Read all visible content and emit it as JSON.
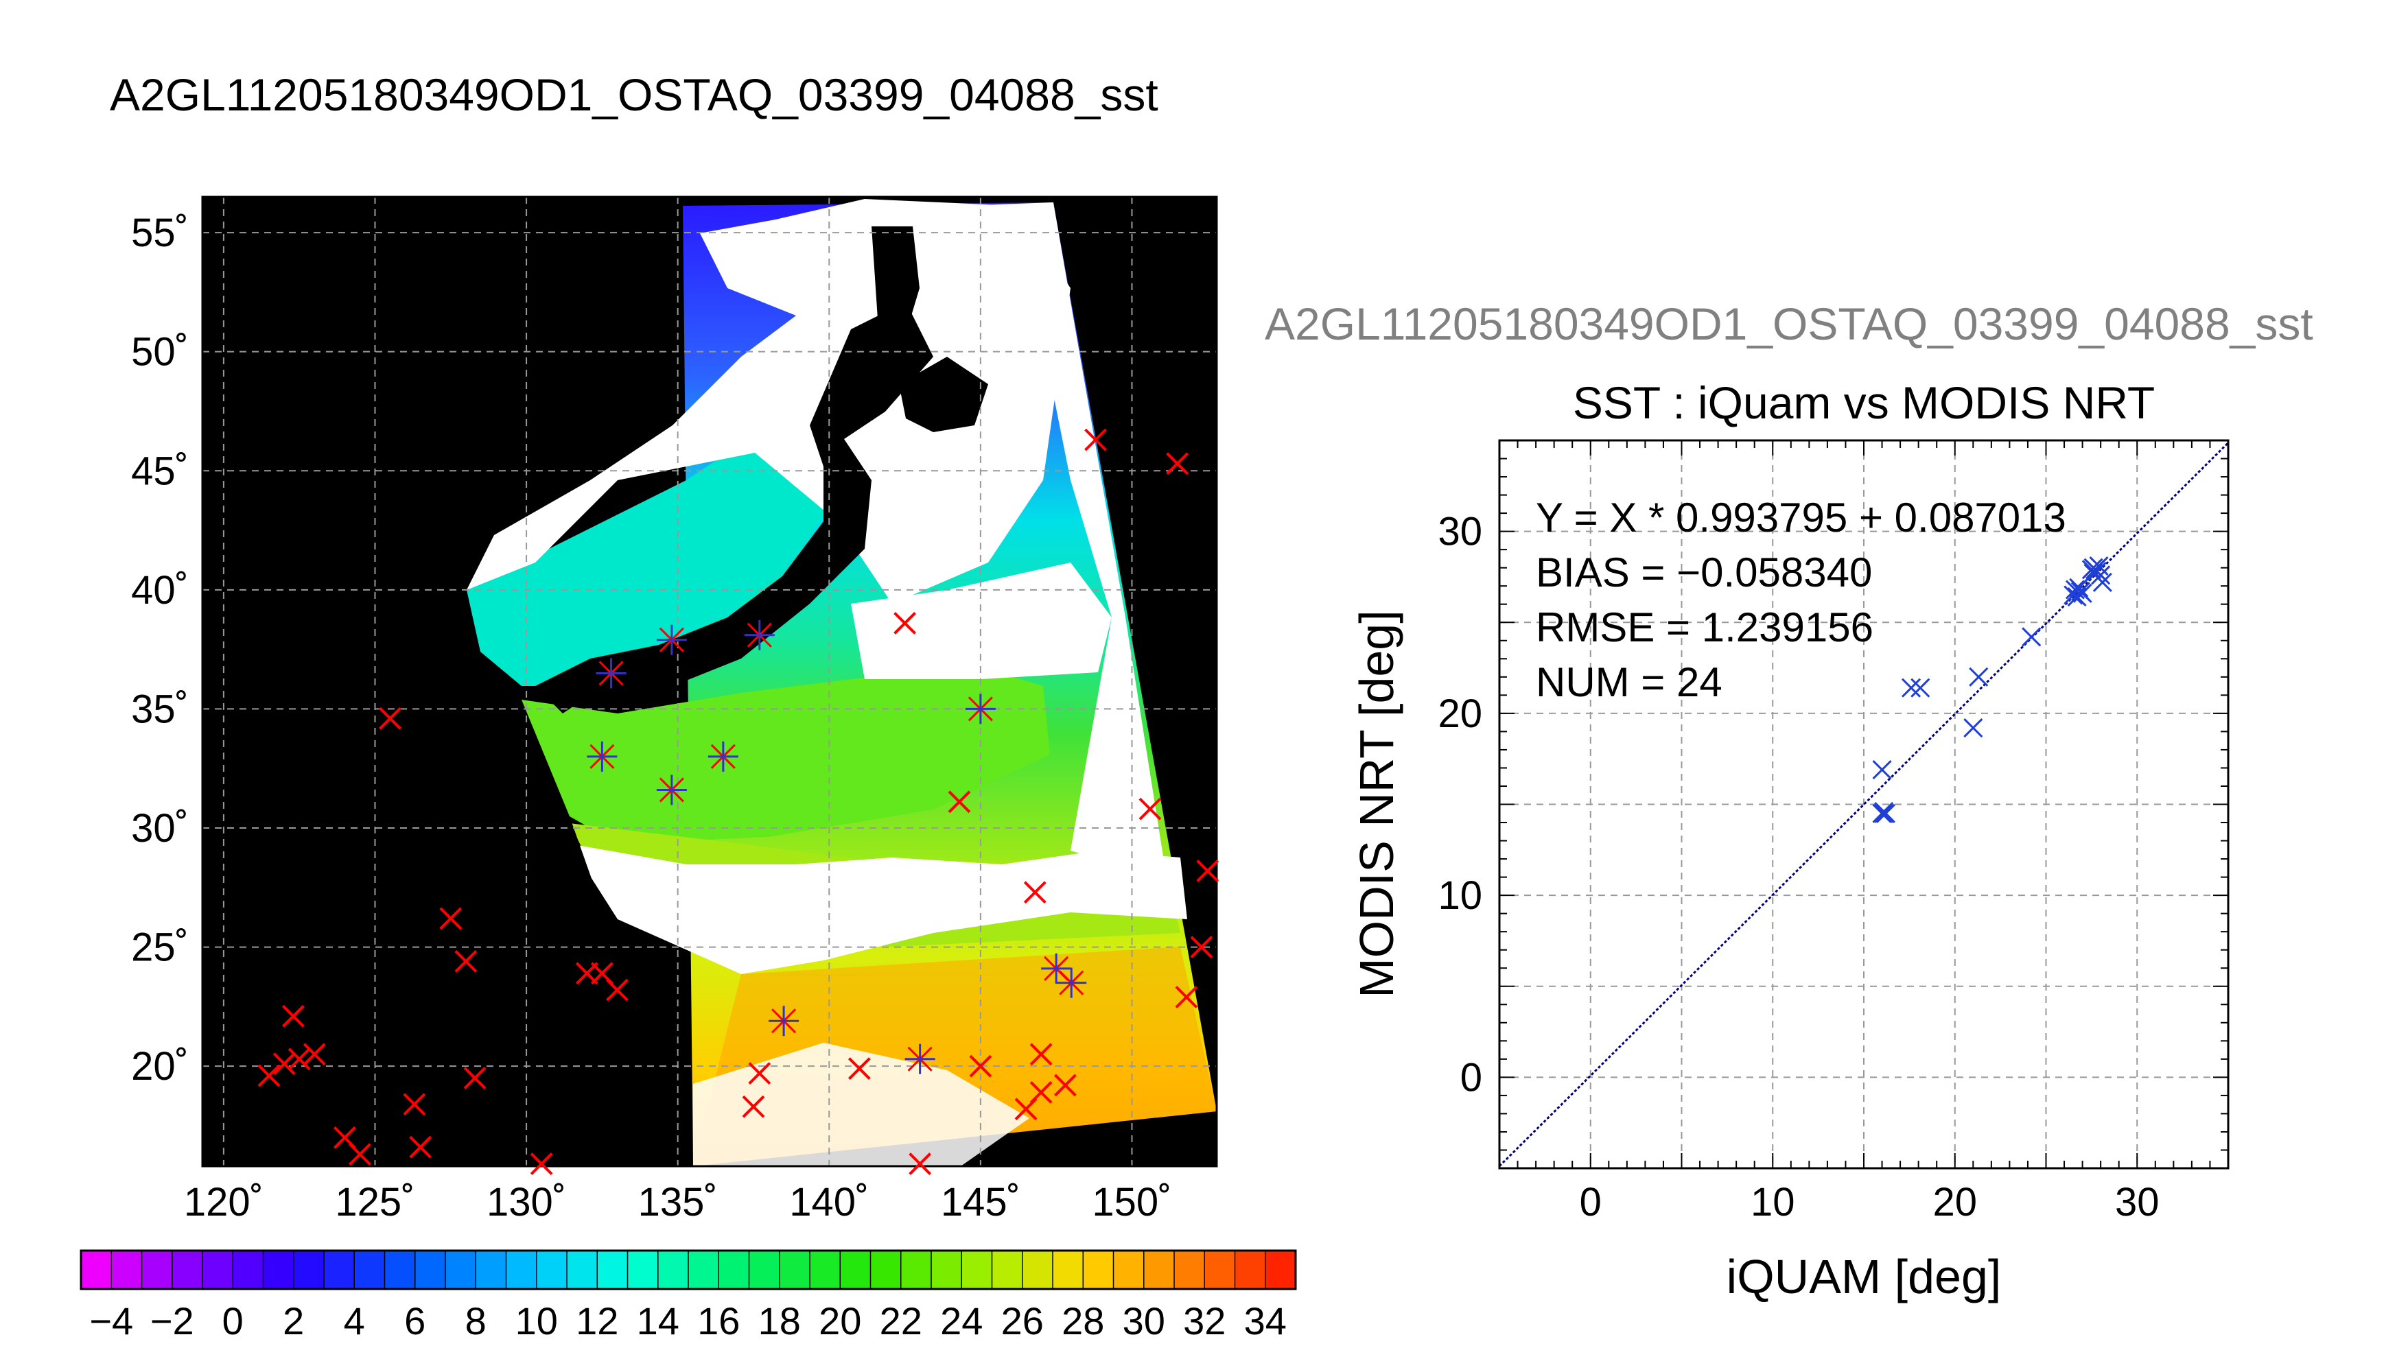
{
  "page": {
    "title": "A2GL11205180349OD1_OSTAQ_03399_04088_sst",
    "scatter_subtitle": "A2GL11205180349OD1_OSTAQ_03399_04088_sst"
  },
  "colors": {
    "match_marker": "#ff0000",
    "match_marker_in_swath": "#3333cc",
    "scatter_marker": "#1f3fd6",
    "fit_line": "#000080",
    "map_background": "#000000",
    "cloud_mask": "#ffffff",
    "subtitle_gray": "#808080"
  },
  "chart_data": [
    {
      "type": "heatmap",
      "name": "sst_map",
      "x_ticks": [
        "120˚",
        "125˚",
        "130˚",
        "135˚",
        "140˚",
        "145˚",
        "150˚"
      ],
      "y_ticks": [
        "55˚",
        "50˚",
        "45˚",
        "40˚",
        "35˚",
        "30˚",
        "25˚",
        "20˚"
      ],
      "xlim": [
        119.3,
        152.8
      ],
      "ylim": [
        15.8,
        56.5
      ],
      "grid": true,
      "colorbar": {
        "min": -5,
        "max": 35,
        "step": 2,
        "tick_labels": [
          "−4",
          "−2",
          "0",
          "2",
          "4",
          "6",
          "8",
          "10",
          "12",
          "14",
          "16",
          "18",
          "20",
          "22",
          "24",
          "26",
          "28",
          "30",
          "32",
          "34"
        ]
      },
      "matchups": [
        [
          148.8,
          46.3
        ],
        [
          151.5,
          45.3
        ],
        [
          142.5,
          38.6
        ],
        [
          125.5,
          34.6
        ],
        [
          144.3,
          31.1
        ],
        [
          150.6,
          30.8
        ],
        [
          152.5,
          28.2
        ],
        [
          146.8,
          27.3
        ],
        [
          152.3,
          25.0
        ],
        [
          151.8,
          22.9
        ],
        [
          127.5,
          26.2
        ],
        [
          128.0,
          24.4
        ],
        [
          132.0,
          23.9
        ],
        [
          132.5,
          23.9
        ],
        [
          133.0,
          23.2
        ],
        [
          122.3,
          22.1
        ],
        [
          121.5,
          19.6
        ],
        [
          122.0,
          20.1
        ],
        [
          122.5,
          20.3
        ],
        [
          123.0,
          20.5
        ],
        [
          128.3,
          19.5
        ],
        [
          126.3,
          18.4
        ],
        [
          124.0,
          17.0
        ],
        [
          124.5,
          16.3
        ],
        [
          126.5,
          16.6
        ],
        [
          130.5,
          15.9
        ],
        [
          137.7,
          19.7
        ],
        [
          137.5,
          18.3
        ],
        [
          141.0,
          19.9
        ],
        [
          145.0,
          20.0
        ],
        [
          146.5,
          18.2
        ],
        [
          147.0,
          18.9
        ],
        [
          147.8,
          19.2
        ],
        [
          147.0,
          20.5
        ],
        [
          143.0,
          15.9
        ]
      ],
      "matchups_in_swath": [
        [
          134.8,
          37.9
        ],
        [
          137.7,
          38.1
        ],
        [
          132.8,
          36.5
        ],
        [
          132.5,
          33.0
        ],
        [
          134.8,
          31.6
        ],
        [
          136.5,
          33.0
        ],
        [
          145.0,
          35.0
        ],
        [
          138.5,
          21.9
        ],
        [
          143.0,
          20.3
        ],
        [
          147.5,
          24.1
        ],
        [
          148.0,
          23.5
        ]
      ]
    },
    {
      "type": "scatter",
      "name": "sst_scatter",
      "title": "SST : iQuam vs MODIS NRT",
      "xlabel": "iQUAM [deg]",
      "ylabel": "MODIS NRT [deg]",
      "xlim": [
        -5,
        35
      ],
      "ylim": [
        -5,
        35
      ],
      "x_ticks": [
        0,
        10,
        20,
        30
      ],
      "y_ticks": [
        0,
        10,
        20,
        30
      ],
      "grid": true,
      "annotations": [
        "Y = X * 0.993795 + 0.087013",
        "BIAS = −0.058340",
        "RMSE = 1.239156",
        "NUM = 24"
      ],
      "fit": {
        "slope": 0.993795,
        "intercept": 0.087013
      },
      "points": [
        [
          16.0,
          14.5
        ],
        [
          16.1,
          14.6
        ],
        [
          16.2,
          14.5
        ],
        [
          16.0,
          16.9
        ],
        [
          17.6,
          21.4
        ],
        [
          18.1,
          21.4
        ],
        [
          21.0,
          19.2
        ],
        [
          21.3,
          22.0
        ],
        [
          24.2,
          24.2
        ],
        [
          26.5,
          26.5
        ],
        [
          26.6,
          26.8
        ],
        [
          26.8,
          26.9
        ],
        [
          26.7,
          26.4
        ],
        [
          27.0,
          26.6
        ],
        [
          27.5,
          27.9
        ],
        [
          27.6,
          28.0
        ],
        [
          27.8,
          27.8
        ],
        [
          27.9,
          28.1
        ],
        [
          28.0,
          27.6
        ],
        [
          28.1,
          27.2
        ],
        [
          16.1,
          14.5
        ],
        [
          26.9,
          26.7
        ],
        [
          27.7,
          27.9
        ],
        [
          27.6,
          27.7
        ]
      ]
    }
  ]
}
